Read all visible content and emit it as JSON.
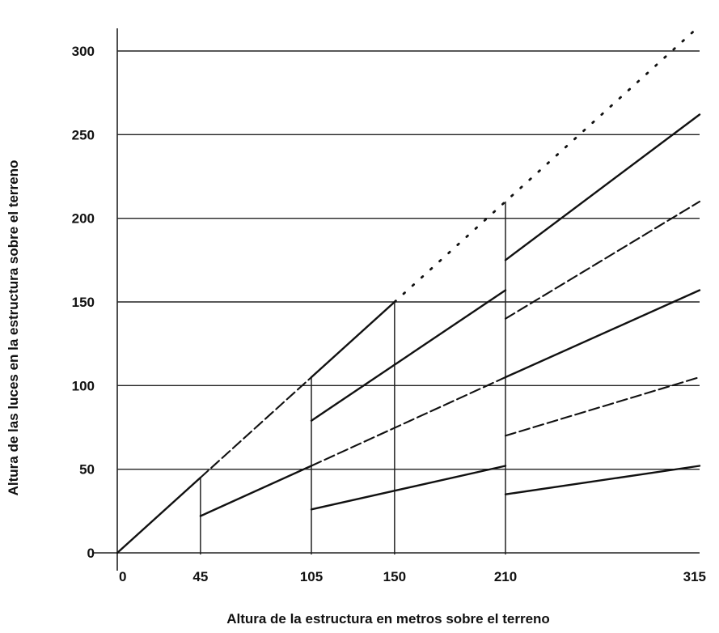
{
  "chart_data": {
    "type": "line",
    "title": "",
    "xlabel": "Altura de la estructura en metros sobre el terreno",
    "ylabel": "Altura de las luces en la estructura  sobre el terreno",
    "x_ticks": [
      0,
      45,
      105,
      150,
      210,
      315
    ],
    "x_tick_labels": [
      "0",
      "45",
      "105",
      "150",
      "210",
      "315"
    ],
    "y_ticks": [
      0,
      50,
      100,
      150,
      200,
      250,
      300
    ],
    "y_tick_labels": [
      "0",
      "50",
      "100",
      "150",
      "200",
      "250",
      "300"
    ],
    "xlim": [
      0,
      315
    ],
    "ylim": [
      0,
      300
    ],
    "grid": "horizontal",
    "legend": "none",
    "series": [
      {
        "style": "solid",
        "points": [
          [
            0,
            0
          ],
          [
            45,
            45
          ]
        ]
      },
      {
        "style": "dashed",
        "points": [
          [
            45,
            45
          ],
          [
            105,
            105
          ]
        ]
      },
      {
        "style": "solid",
        "points": [
          [
            105,
            105
          ],
          [
            150,
            150
          ]
        ]
      },
      {
        "style": "dotted",
        "points": [
          [
            150,
            150
          ],
          [
            315,
            315
          ]
        ]
      },
      {
        "style": "solid",
        "points": [
          [
            45,
            22
          ],
          [
            105,
            52
          ]
        ]
      },
      {
        "style": "dashed",
        "points": [
          [
            105,
            52
          ],
          [
            210,
            105
          ]
        ]
      },
      {
        "style": "solid",
        "points": [
          [
            210,
            105
          ],
          [
            315,
            157
          ]
        ]
      },
      {
        "style": "solid",
        "points": [
          [
            105,
            26
          ],
          [
            210,
            52
          ]
        ]
      },
      {
        "style": "solid",
        "points": [
          [
            105,
            79
          ],
          [
            210,
            157
          ]
        ]
      },
      {
        "style": "solid",
        "points": [
          [
            210,
            35
          ],
          [
            315,
            52
          ]
        ]
      },
      {
        "style": "dashed",
        "points": [
          [
            210,
            70
          ],
          [
            315,
            105
          ]
        ]
      },
      {
        "style": "dashed",
        "points": [
          [
            210,
            140
          ],
          [
            315,
            210
          ]
        ]
      },
      {
        "style": "solid",
        "points": [
          [
            210,
            175
          ],
          [
            315,
            262
          ]
        ]
      }
    ],
    "drop_lines": [
      {
        "x": 45,
        "y": 45
      },
      {
        "x": 105,
        "y": 105
      },
      {
        "x": 150,
        "y": 150
      },
      {
        "x": 210,
        "y": 210
      }
    ]
  }
}
